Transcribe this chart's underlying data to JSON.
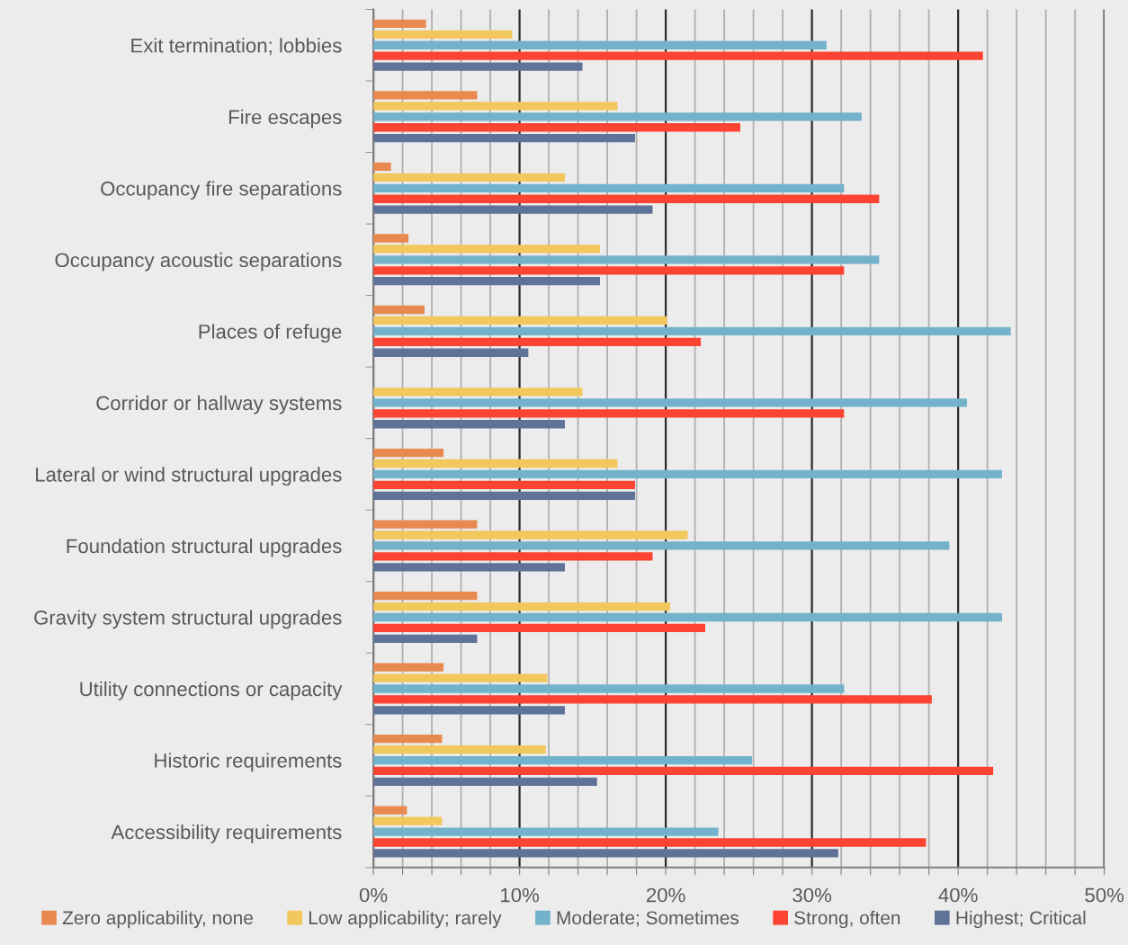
{
  "chart_data": {
    "type": "bar",
    "orientation": "horizontal",
    "categories": [
      "Exit termination; lobbies",
      "Fire escapes",
      "Occupancy fire separations",
      "Occupancy acoustic separations",
      "Places of refuge",
      "Corridor or hallway systems",
      "Lateral or wind structural upgrades",
      "Foundation structural upgrades",
      "Gravity system structural upgrades",
      "Utility connections or capacity",
      "Historic requirements",
      "Accessibility requirements"
    ],
    "series": [
      {
        "name": "Zero applicability, none",
        "color": "#e8894f",
        "values": [
          3.6,
          7.1,
          1.2,
          2.4,
          3.5,
          0,
          4.8,
          7.1,
          7.1,
          4.8,
          4.7,
          2.3
        ]
      },
      {
        "name": "Low applicability; rarely",
        "color": "#f2c75c",
        "values": [
          9.5,
          16.7,
          13.1,
          15.5,
          20.1,
          14.3,
          16.7,
          21.5,
          20.3,
          11.9,
          11.8,
          4.7
        ]
      },
      {
        "name": "Moderate; Sometimes",
        "color": "#72b2cb",
        "values": [
          31.0,
          33.4,
          32.2,
          34.6,
          43.6,
          40.6,
          43.0,
          39.4,
          43.0,
          32.2,
          25.9,
          23.6
        ]
      },
      {
        "name": "Strong, often",
        "color": "#fd4331",
        "values": [
          41.7,
          25.1,
          34.6,
          32.2,
          22.4,
          32.2,
          17.9,
          19.1,
          22.7,
          38.2,
          42.4,
          37.8
        ]
      },
      {
        "name": "Highest; Critical",
        "color": "#5f7298",
        "values": [
          14.3,
          17.9,
          19.1,
          15.5,
          10.6,
          13.1,
          17.9,
          13.1,
          7.1,
          13.1,
          15.3,
          31.8
        ]
      }
    ],
    "xlim": [
      0,
      50
    ],
    "xticks": [
      {
        "value": 0,
        "label": "0%"
      },
      {
        "value": 2,
        "label": null
      },
      {
        "value": 4,
        "label": null
      },
      {
        "value": 6,
        "label": null
      },
      {
        "value": 8,
        "label": null
      },
      {
        "value": 10,
        "label": "10%"
      },
      {
        "value": 12,
        "label": null
      },
      {
        "value": 14,
        "label": null
      },
      {
        "value": 16,
        "label": null
      },
      {
        "value": 18,
        "label": null
      },
      {
        "value": 20,
        "label": "20%"
      },
      {
        "value": 22,
        "label": null
      },
      {
        "value": 24,
        "label": null
      },
      {
        "value": 26,
        "label": null
      },
      {
        "value": 28,
        "label": null
      },
      {
        "value": 30,
        "label": "30%"
      },
      {
        "value": 32,
        "label": null
      },
      {
        "value": 34,
        "label": null
      },
      {
        "value": 36,
        "label": null
      },
      {
        "value": 38,
        "label": null
      },
      {
        "value": 40,
        "label": "40%"
      },
      {
        "value": 42,
        "label": null
      },
      {
        "value": 44,
        "label": null
      },
      {
        "value": 46,
        "label": null
      },
      {
        "value": 48,
        "label": null
      },
      {
        "value": 50,
        "label": "50%"
      }
    ],
    "grid": "x",
    "legend": "bottom"
  }
}
